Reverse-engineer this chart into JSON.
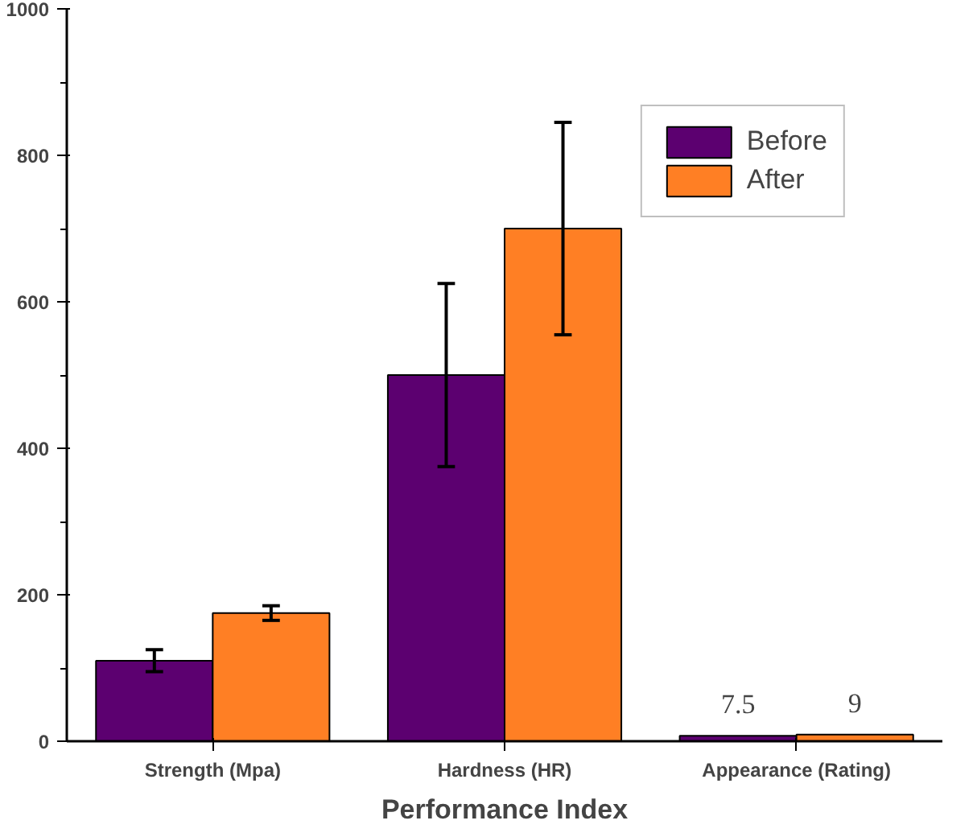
{
  "chart_data": {
    "type": "bar",
    "xlabel": "Performance Index",
    "categories": [
      "Strength (Mpa)",
      "Hardness (HR)",
      "Appearance (Rating)"
    ],
    "series": [
      {
        "name": "Before",
        "color": "#5c0070",
        "values": [
          110,
          500,
          7.5
        ],
        "errors": [
          15,
          125,
          null
        ],
        "value_labels": [
          null,
          null,
          "7.5"
        ]
      },
      {
        "name": "After",
        "color": "#ff7f24",
        "values": [
          175,
          700,
          9
        ],
        "errors": [
          10,
          145,
          null
        ],
        "value_labels": [
          null,
          null,
          "9"
        ]
      }
    ],
    "ylim": [
      0,
      1000
    ],
    "yticks": [
      0,
      200,
      400,
      600,
      800,
      1000
    ],
    "grid": false,
    "legend": "top right"
  }
}
